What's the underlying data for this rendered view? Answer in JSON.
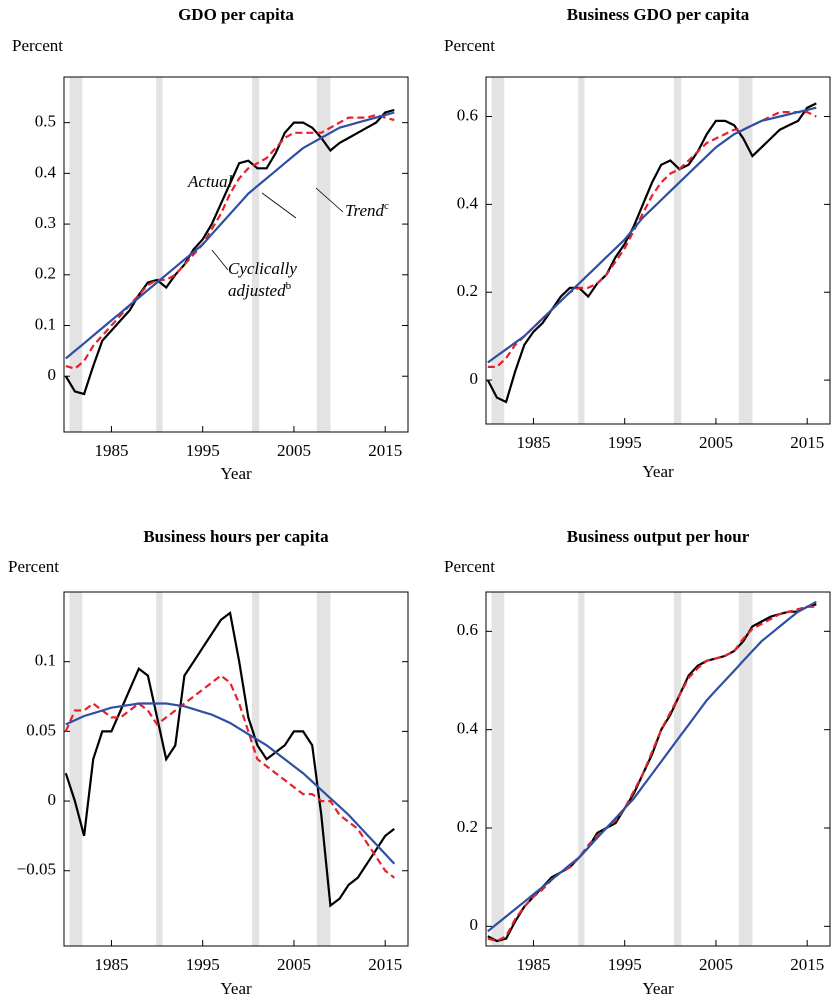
{
  "chart_data": [
    {
      "type": "line",
      "title": "GDO per capita",
      "y_label": "Percent",
      "x_label": "Year",
      "x": [
        1980,
        1981,
        1982,
        1983,
        1984,
        1985,
        1986,
        1987,
        1988,
        1989,
        1990,
        1991,
        1992,
        1993,
        1994,
        1995,
        1996,
        1997,
        1998,
        1999,
        2000,
        2001,
        2002,
        2003,
        2004,
        2005,
        2006,
        2007,
        2008,
        2009,
        2010,
        2011,
        2012,
        2013,
        2014,
        2015,
        2016
      ],
      "xlim": [
        1979.8,
        2017.5
      ],
      "xticks": [
        1985,
        1995,
        2005,
        2015
      ],
      "ylim": [
        -0.11,
        0.59
      ],
      "yticks": [
        0,
        0.1,
        0.2,
        0.3,
        0.4,
        0.5
      ],
      "recessions": [
        [
          1980.4,
          1981.8
        ],
        [
          1989.9,
          1990.6
        ],
        [
          2000.4,
          2001.2
        ],
        [
          2007.5,
          2009.0
        ]
      ],
      "recession_color": "#e3e3e3",
      "series": [
        {
          "color": "#000000",
          "style": "solid",
          "values": [
            0.0,
            -0.03,
            -0.035,
            0.02,
            0.07,
            0.09,
            0.11,
            0.13,
            0.16,
            0.185,
            0.19,
            0.175,
            0.2,
            0.22,
            0.25,
            0.27,
            0.3,
            0.34,
            0.38,
            0.42,
            0.425,
            0.41,
            0.41,
            0.44,
            0.48,
            0.5,
            0.5,
            0.49,
            0.47,
            0.445,
            0.46,
            0.47,
            0.48,
            0.49,
            0.5,
            0.52,
            0.525
          ]
        },
        {
          "color": "#e8202a",
          "style": "dashed",
          "values": [
            0.02,
            0.015,
            0.03,
            0.06,
            0.08,
            0.1,
            0.12,
            0.14,
            0.16,
            0.18,
            0.19,
            0.19,
            0.2,
            0.22,
            0.24,
            0.26,
            0.29,
            0.32,
            0.36,
            0.39,
            0.41,
            0.42,
            0.43,
            0.45,
            0.47,
            0.48,
            0.48,
            0.48,
            0.48,
            0.49,
            0.5,
            0.51,
            0.51,
            0.51,
            0.515,
            0.51,
            0.505
          ]
        },
        {
          "color": "#2e4fa3",
          "style": "solid",
          "values": [
            0.035,
            0.05,
            0.065,
            0.08,
            0.095,
            0.11,
            0.125,
            0.14,
            0.155,
            0.17,
            0.185,
            0.2,
            0.215,
            0.23,
            0.245,
            0.26,
            0.28,
            0.3,
            0.32,
            0.34,
            0.36,
            0.375,
            0.39,
            0.405,
            0.42,
            0.435,
            0.45,
            0.46,
            0.47,
            0.48,
            0.49,
            0.495,
            0.5,
            0.505,
            0.51,
            0.515,
            0.52
          ]
        }
      ],
      "annotations": [
        {
          "text": "Actual"
        },
        {
          "text": "Trend",
          "sup": "c"
        },
        {
          "lines": [
            "Cyclically",
            "adjusted"
          ],
          "sup": "b"
        }
      ]
    },
    {
      "type": "line",
      "title": "Business GDO per capita",
      "y_label": "Percent",
      "x_label": "Year",
      "x": [
        1980,
        1981,
        1982,
        1983,
        1984,
        1985,
        1986,
        1987,
        1988,
        1989,
        1990,
        1991,
        1992,
        1993,
        1994,
        1995,
        1996,
        1997,
        1998,
        1999,
        2000,
        2001,
        2002,
        2003,
        2004,
        2005,
        2006,
        2007,
        2008,
        2009,
        2010,
        2011,
        2012,
        2013,
        2014,
        2015,
        2016
      ],
      "xlim": [
        1979.8,
        2017.5
      ],
      "xticks": [
        1985,
        1995,
        2005,
        2015
      ],
      "ylim": [
        -0.1,
        0.69
      ],
      "yticks": [
        0,
        0.2,
        0.4,
        0.6
      ],
      "recessions": [
        [
          1980.4,
          1981.8
        ],
        [
          1989.9,
          1990.6
        ],
        [
          2000.4,
          2001.2
        ],
        [
          2007.5,
          2009.0
        ]
      ],
      "recession_color": "#e3e3e3",
      "series": [
        {
          "color": "#000000",
          "style": "solid",
          "values": [
            0.0,
            -0.04,
            -0.05,
            0.02,
            0.08,
            0.11,
            0.13,
            0.16,
            0.19,
            0.21,
            0.21,
            0.19,
            0.22,
            0.24,
            0.28,
            0.31,
            0.35,
            0.4,
            0.45,
            0.49,
            0.5,
            0.48,
            0.49,
            0.52,
            0.56,
            0.59,
            0.59,
            0.58,
            0.55,
            0.51,
            0.53,
            0.55,
            0.57,
            0.58,
            0.59,
            0.62,
            0.63
          ]
        },
        {
          "color": "#e8202a",
          "style": "dashed",
          "values": [
            0.03,
            0.03,
            0.05,
            0.08,
            0.1,
            0.12,
            0.14,
            0.16,
            0.18,
            0.2,
            0.21,
            0.21,
            0.22,
            0.24,
            0.27,
            0.3,
            0.34,
            0.38,
            0.42,
            0.45,
            0.47,
            0.48,
            0.5,
            0.52,
            0.54,
            0.55,
            0.56,
            0.57,
            0.57,
            0.58,
            0.59,
            0.6,
            0.61,
            0.61,
            0.61,
            0.61,
            0.6
          ]
        },
        {
          "color": "#2e4fa3",
          "style": "solid",
          "values": [
            0.04,
            0.055,
            0.07,
            0.085,
            0.1,
            0.12,
            0.14,
            0.16,
            0.18,
            0.2,
            0.22,
            0.24,
            0.26,
            0.28,
            0.3,
            0.32,
            0.345,
            0.37,
            0.39,
            0.41,
            0.43,
            0.45,
            0.47,
            0.49,
            0.51,
            0.53,
            0.545,
            0.56,
            0.57,
            0.58,
            0.59,
            0.595,
            0.6,
            0.605,
            0.61,
            0.615,
            0.62
          ]
        }
      ]
    },
    {
      "type": "line",
      "title": "Business hours per capita",
      "y_label": "Percent",
      "x_label": "Year",
      "x": [
        1980,
        1981,
        1982,
        1983,
        1984,
        1985,
        1986,
        1987,
        1988,
        1989,
        1990,
        1991,
        1992,
        1993,
        1994,
        1995,
        1996,
        1997,
        1998,
        1999,
        2000,
        2001,
        2002,
        2003,
        2004,
        2005,
        2006,
        2007,
        2008,
        2009,
        2010,
        2011,
        2012,
        2013,
        2014,
        2015,
        2016
      ],
      "xlim": [
        1979.8,
        2017.5
      ],
      "xticks": [
        1985,
        1995,
        2005,
        2015
      ],
      "ylim": [
        -0.104,
        0.15
      ],
      "yticks": [
        {
          "value": -0.05,
          "label": "−0.05"
        },
        0,
        0.05,
        0.1
      ],
      "recessions": [
        [
          1980.4,
          1981.8
        ],
        [
          1989.9,
          1990.6
        ],
        [
          2000.4,
          2001.2
        ],
        [
          2007.5,
          2009.0
        ]
      ],
      "recession_color": "#e3e3e3",
      "series": [
        {
          "color": "#000000",
          "style": "solid",
          "values": [
            0.02,
            0.0,
            -0.025,
            0.03,
            0.05,
            0.05,
            0.065,
            0.08,
            0.095,
            0.09,
            0.06,
            0.03,
            0.04,
            0.09,
            0.1,
            0.11,
            0.12,
            0.13,
            0.135,
            0.1,
            0.06,
            0.04,
            0.03,
            0.035,
            0.04,
            0.05,
            0.05,
            0.04,
            -0.01,
            -0.075,
            -0.07,
            -0.06,
            -0.055,
            -0.045,
            -0.035,
            -0.025,
            -0.02
          ]
        },
        {
          "color": "#e8202a",
          "style": "dashed",
          "values": [
            0.05,
            0.065,
            0.065,
            0.07,
            0.065,
            0.06,
            0.06,
            0.065,
            0.07,
            0.065,
            0.055,
            0.06,
            0.065,
            0.07,
            0.075,
            0.08,
            0.085,
            0.09,
            0.085,
            0.07,
            0.05,
            0.03,
            0.025,
            0.02,
            0.015,
            0.01,
            0.005,
            0.005,
            0.0,
            0.0,
            -0.01,
            -0.015,
            -0.02,
            -0.03,
            -0.04,
            -0.05,
            -0.055
          ]
        },
        {
          "color": "#2e4fa3",
          "style": "solid",
          "values": [
            0.055,
            0.058,
            0.061,
            0.063,
            0.065,
            0.067,
            0.068,
            0.069,
            0.07,
            0.07,
            0.07,
            0.07,
            0.069,
            0.068,
            0.066,
            0.064,
            0.062,
            0.059,
            0.056,
            0.052,
            0.048,
            0.044,
            0.04,
            0.035,
            0.03,
            0.025,
            0.02,
            0.014,
            0.008,
            0.002,
            -0.004,
            -0.01,
            -0.017,
            -0.024,
            -0.031,
            -0.038,
            -0.045
          ]
        }
      ]
    },
    {
      "type": "line",
      "title": "Business output per hour",
      "y_label": "Percent",
      "x_label": "Year",
      "x": [
        1980,
        1981,
        1982,
        1983,
        1984,
        1985,
        1986,
        1987,
        1988,
        1989,
        1990,
        1991,
        1992,
        1993,
        1994,
        1995,
        1996,
        1997,
        1998,
        1999,
        2000,
        2001,
        2002,
        2003,
        2004,
        2005,
        2006,
        2007,
        2008,
        2009,
        2010,
        2011,
        2012,
        2013,
        2014,
        2015,
        2016
      ],
      "xlim": [
        1979.8,
        2017.5
      ],
      "xticks": [
        1985,
        1995,
        2005,
        2015
      ],
      "ylim": [
        -0.04,
        0.68
      ],
      "yticks": [
        0,
        0.2,
        0.4,
        0.6
      ],
      "recessions": [
        [
          1980.4,
          1981.8
        ],
        [
          1989.9,
          1990.6
        ],
        [
          2000.4,
          2001.2
        ],
        [
          2007.5,
          2009.0
        ]
      ],
      "recession_color": "#e3e3e3",
      "series": [
        {
          "color": "#000000",
          "style": "solid",
          "values": [
            -0.02,
            -0.03,
            -0.025,
            0.01,
            0.04,
            0.06,
            0.08,
            0.1,
            0.11,
            0.12,
            0.14,
            0.16,
            0.19,
            0.2,
            0.21,
            0.24,
            0.27,
            0.31,
            0.35,
            0.4,
            0.43,
            0.47,
            0.51,
            0.53,
            0.54,
            0.545,
            0.55,
            0.56,
            0.58,
            0.61,
            0.62,
            0.63,
            0.635,
            0.64,
            0.64,
            0.65,
            0.655
          ]
        },
        {
          "color": "#e8202a",
          "style": "dashed",
          "values": [
            -0.025,
            -0.03,
            -0.02,
            0.015,
            0.04,
            0.06,
            0.075,
            0.095,
            0.11,
            0.12,
            0.14,
            0.165,
            0.185,
            0.2,
            0.215,
            0.24,
            0.275,
            0.31,
            0.355,
            0.4,
            0.435,
            0.47,
            0.505,
            0.525,
            0.54,
            0.545,
            0.55,
            0.56,
            0.585,
            0.605,
            0.615,
            0.625,
            0.635,
            0.64,
            0.645,
            0.65,
            0.65
          ]
        },
        {
          "color": "#2e4fa3",
          "style": "solid",
          "values": [
            -0.01,
            0.005,
            0.02,
            0.035,
            0.05,
            0.065,
            0.08,
            0.095,
            0.11,
            0.125,
            0.14,
            0.16,
            0.18,
            0.2,
            0.22,
            0.24,
            0.26,
            0.285,
            0.31,
            0.335,
            0.36,
            0.385,
            0.41,
            0.435,
            0.46,
            0.48,
            0.5,
            0.52,
            0.54,
            0.56,
            0.58,
            0.595,
            0.61,
            0.625,
            0.64,
            0.65,
            0.66
          ]
        }
      ]
    }
  ]
}
